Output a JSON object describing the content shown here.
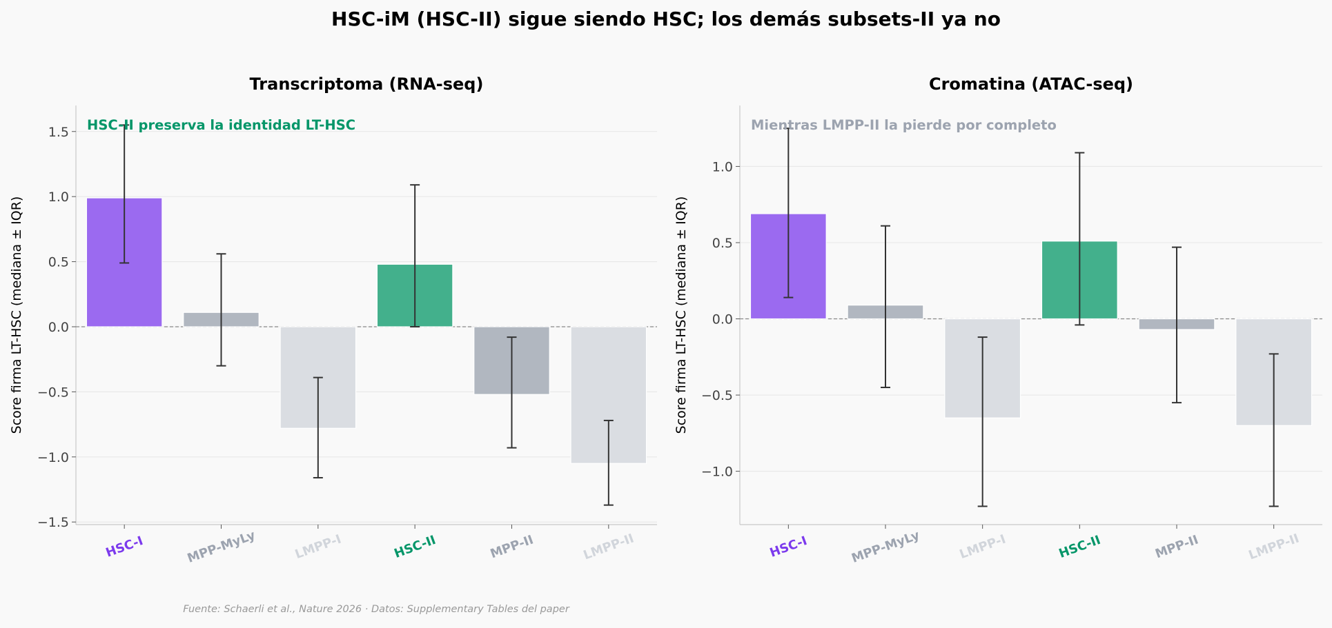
{
  "title": "HSC-iM (HSC-II) sigue siendo HSC; los demás subsets-II ya no",
  "footer": "Fuente: Schaerli et al., Nature 2026 · Datos: Supplementary Tables del paper",
  "colors": {
    "background": "#f9f9f9",
    "hsc_i": "#7c3aed",
    "hsc_ii": "#059669",
    "mpp": "#9ca3af",
    "lmpp": "#d1d5db",
    "errorbar": "#333333"
  },
  "chart_data": [
    {
      "type": "bar",
      "title": "Transcriptoma (RNA-seq)",
      "ylabel": "Score firma LT-HSC (mediana ± IQR)",
      "annotation": "HSC-II preserva la identidad LT-HSC",
      "annotation_color": "#059669",
      "categories": [
        "HSC-I",
        "MPP-MyLy",
        "LMPP-I",
        "HSC-II",
        "MPP-II",
        "LMPP-II"
      ],
      "category_colors": [
        "#7c3aed",
        "#9ca3af",
        "#d1d5db",
        "#059669",
        "#9ca3af",
        "#d1d5db"
      ],
      "bar_colors": [
        "#9b6af0",
        "#b1b7c0",
        "#dadde2",
        "#43b08c",
        "#b1b7c0",
        "#dadde2"
      ],
      "values": [
        0.99,
        0.11,
        -0.78,
        0.48,
        -0.52,
        -1.05
      ],
      "err_low": [
        0.49,
        -0.3,
        -1.16,
        0.0,
        -0.93,
        -1.37
      ],
      "err_high": [
        1.55,
        0.56,
        -0.39,
        1.09,
        -0.08,
        -0.72
      ],
      "ylim": [
        -1.52,
        1.7
      ],
      "yticks": [
        -1.5,
        -1.0,
        -0.5,
        0.0,
        0.5,
        1.0,
        1.5
      ],
      "ytick_labels": [
        "−1.5",
        "−1.0",
        "−0.5",
        "0.0",
        "0.5",
        "1.0",
        "1.5"
      ],
      "grid": true
    },
    {
      "type": "bar",
      "title": "Cromatina (ATAC-seq)",
      "ylabel": "Score firma LT-HSC (mediana ± IQR)",
      "annotation": "Mientras LMPP-II la pierde por completo",
      "annotation_color": "#9ca3af",
      "categories": [
        "HSC-I",
        "MPP-MyLy",
        "LMPP-I",
        "HSC-II",
        "MPP-II",
        "LMPP-II"
      ],
      "category_colors": [
        "#7c3aed",
        "#9ca3af",
        "#d1d5db",
        "#059669",
        "#9ca3af",
        "#d1d5db"
      ],
      "bar_colors": [
        "#9b6af0",
        "#b1b7c0",
        "#dadde2",
        "#43b08c",
        "#b1b7c0",
        "#dadde2"
      ],
      "values": [
        0.69,
        0.09,
        -0.65,
        0.51,
        -0.07,
        -0.7
      ],
      "err_low": [
        0.14,
        -0.45,
        -1.23,
        -0.04,
        -0.55,
        -1.23
      ],
      "err_high": [
        1.25,
        0.61,
        -0.12,
        1.09,
        0.47,
        -0.23
      ],
      "ylim": [
        -1.35,
        1.4
      ],
      "yticks": [
        -1.0,
        -0.5,
        0.0,
        0.5,
        1.0
      ],
      "ytick_labels": [
        "−1.0",
        "−0.5",
        "0.0",
        "0.5",
        "1.0"
      ],
      "grid": true
    }
  ]
}
